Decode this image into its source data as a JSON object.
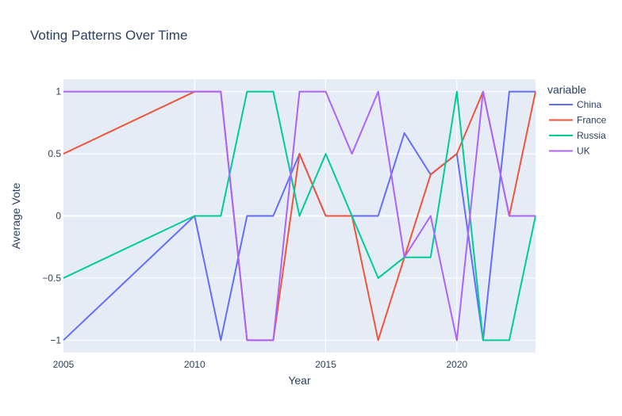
{
  "chart_data": {
    "type": "line",
    "title": "Voting Patterns Over Time",
    "xlabel": "Year",
    "ylabel": "Average Vote",
    "legend_title": "variable",
    "legend_position": "right",
    "grid": true,
    "xlim": [
      2005,
      2023
    ],
    "ylim": [
      -1.1,
      1.1
    ],
    "x_ticks": [
      2005,
      2010,
      2015,
      2020
    ],
    "x_tick_labels": [
      "2005",
      "2010",
      "2015",
      "2020"
    ],
    "y_ticks": [
      -1,
      -0.5,
      0,
      0.5,
      1
    ],
    "y_tick_labels": [
      "−1",
      "−0.5",
      "0",
      "0.5",
      "1"
    ],
    "x": [
      2005,
      2010,
      2011,
      2012,
      2013,
      2014,
      2015,
      2016,
      2017,
      2018,
      2019,
      2020,
      2021,
      2022,
      2023
    ],
    "series": [
      {
        "name": "China",
        "color": "#636efa",
        "values": [
          -1,
          0,
          -1,
          0,
          0,
          0.5,
          0,
          0,
          0,
          0.667,
          0.333,
          0.5,
          -1,
          1,
          1
        ]
      },
      {
        "name": "France",
        "color": "#ef553b",
        "values": [
          0.5,
          1,
          1,
          -1,
          -1,
          0.5,
          0,
          0,
          -1,
          -0.333,
          0.333,
          0.5,
          1,
          0,
          1
        ]
      },
      {
        "name": "Russia",
        "color": "#00cc96",
        "values": [
          -0.5,
          0,
          0,
          1,
          1,
          0,
          0.5,
          0,
          -0.5,
          -0.333,
          -0.333,
          1,
          -1,
          -1,
          0
        ]
      },
      {
        "name": "UK",
        "color": "#ab63fa",
        "values": [
          1,
          1,
          1,
          -1,
          -1,
          1,
          1,
          0.5,
          1,
          -0.333,
          0,
          -1,
          1,
          0,
          0
        ]
      }
    ]
  }
}
